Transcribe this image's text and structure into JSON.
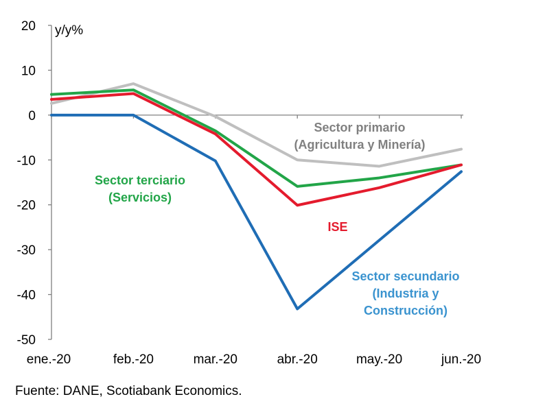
{
  "chart_data": {
    "type": "line",
    "title": "",
    "ylabel": "y/y%",
    "xlabel": "",
    "categories": [
      "ene.-20",
      "feb.-20",
      "mar.-20",
      "abr.-20",
      "may.-20",
      "jun.-20"
    ],
    "ylim": [
      -50,
      20
    ],
    "yticks": [
      20,
      10,
      0,
      -10,
      -20,
      -30,
      -40,
      -50
    ],
    "grid": false,
    "series": [
      {
        "name": "Sector primario (Agricultura y Minería)",
        "label_lines": [
          "Sector primario",
          "(Agricultura y Minería)"
        ],
        "color": "#BFBFBF",
        "label_color": "#808080",
        "values": [
          2.6,
          7.0,
          -0.3,
          -10.0,
          -11.4,
          -7.6
        ]
      },
      {
        "name": "Sector terciario (Servicios)",
        "label_lines": [
          "Sector terciario",
          "(Servicios)"
        ],
        "color": "#22A548",
        "label_color": "#22A548",
        "values": [
          4.6,
          5.6,
          -3.5,
          -15.9,
          -14.0,
          -11.1
        ]
      },
      {
        "name": "ISE",
        "label_lines": [
          "ISE"
        ],
        "color": "#E41B2D",
        "label_color": "#E41B2D",
        "values": [
          3.5,
          4.8,
          -4.2,
          -20.1,
          -16.2,
          -11.1
        ]
      },
      {
        "name": "Sector secundario (Industria y Construcción)",
        "label_lines": [
          "Sector secundario",
          "(Industria y",
          "Construcción)"
        ],
        "color": "#1F6DB5",
        "label_color": "#3A93CF",
        "values": [
          0.0,
          0.0,
          -10.2,
          -43.2,
          -27.9,
          -12.6
        ]
      }
    ]
  },
  "footer": {
    "source": "Fuente: DANE, Scotiabank Economics."
  },
  "colors": {
    "axis": "#808080",
    "text": "#000000"
  }
}
